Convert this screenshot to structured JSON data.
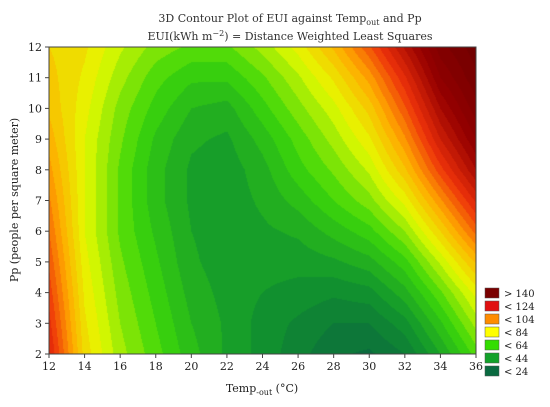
{
  "chart_data": {
    "type": "heatmap",
    "title": "3D Contour Plot of EUI against Temp",
    "title_sub": "out",
    "title_suffix": " and Pp",
    "subtitle_prefix": "EUI(kWh m",
    "subtitle_sup": "−2",
    "subtitle_suffix": ") = Distance Weighted Least Squares",
    "xlabel": "Temp",
    "xlabel_sub": "-out",
    "xlabel_suffix": " (°C)",
    "ylabel": "Pp (people per square meter)",
    "xlim": [
      12,
      36
    ],
    "ylim": [
      2,
      12
    ],
    "x_ticks": [
      "12",
      "14",
      "16",
      "18",
      "20",
      "22",
      "24",
      "26",
      "28",
      "30",
      "32",
      "34",
      "36"
    ],
    "y_ticks": [
      "2",
      "3",
      "4",
      "5",
      "6",
      "7",
      "8",
      "9",
      "10",
      "11",
      "12"
    ],
    "grid": false,
    "legend_position": "bottom-right",
    "legend": [
      {
        "label": "> 140",
        "color": "#7a0000"
      },
      {
        "label": "< 124",
        "color": "#e01010"
      },
      {
        "label": "< 104",
        "color": "#ff8c00"
      },
      {
        "label": "< 84",
        "color": "#ffff00"
      },
      {
        "label": "< 64",
        "color": "#33dd00"
      },
      {
        "label": "< 44",
        "color": "#12a12a"
      },
      {
        "label": "< 24",
        "color": "#0a6a40"
      }
    ],
    "z_grid": {
      "x": [
        12,
        14,
        16,
        18,
        20,
        22,
        24,
        26,
        28,
        30,
        32,
        34,
        36
      ],
      "y": [
        2,
        3,
        4,
        5,
        6,
        7,
        8,
        9,
        10,
        11,
        12
      ],
      "z": [
        [
          126,
          88,
          72,
          62,
          52,
          44,
          38,
          32,
          26,
          24,
          30,
          45,
          62
        ],
        [
          122,
          86,
          70,
          60,
          50,
          44,
          38,
          34,
          30,
          30,
          38,
          54,
          72
        ],
        [
          118,
          84,
          68,
          58,
          48,
          43,
          40,
          38,
          36,
          38,
          48,
          64,
          82
        ],
        [
          114,
          82,
          66,
          56,
          46,
          42,
          42,
          42,
          44,
          48,
          58,
          76,
          96
        ],
        [
          110,
          80,
          64,
          54,
          45,
          42,
          44,
          46,
          52,
          58,
          70,
          90,
          112
        ],
        [
          106,
          80,
          64,
          52,
          44,
          42,
          46,
          52,
          60,
          68,
          82,
          104,
          126
        ],
        [
          102,
          80,
          64,
          52,
          44,
          42,
          48,
          58,
          66,
          76,
          94,
          118,
          140
        ],
        [
          98,
          80,
          66,
          54,
          46,
          44,
          52,
          62,
          72,
          84,
          104,
          130,
          150
        ],
        [
          94,
          82,
          68,
          58,
          50,
          48,
          58,
          68,
          78,
          92,
          114,
          140,
          158
        ],
        [
          92,
          84,
          72,
          62,
          56,
          56,
          64,
          74,
          86,
          102,
          124,
          150,
          164
        ],
        [
          90,
          86,
          76,
          68,
          64,
          64,
          72,
          82,
          96,
          114,
          136,
          158,
          168
        ]
      ]
    }
  }
}
